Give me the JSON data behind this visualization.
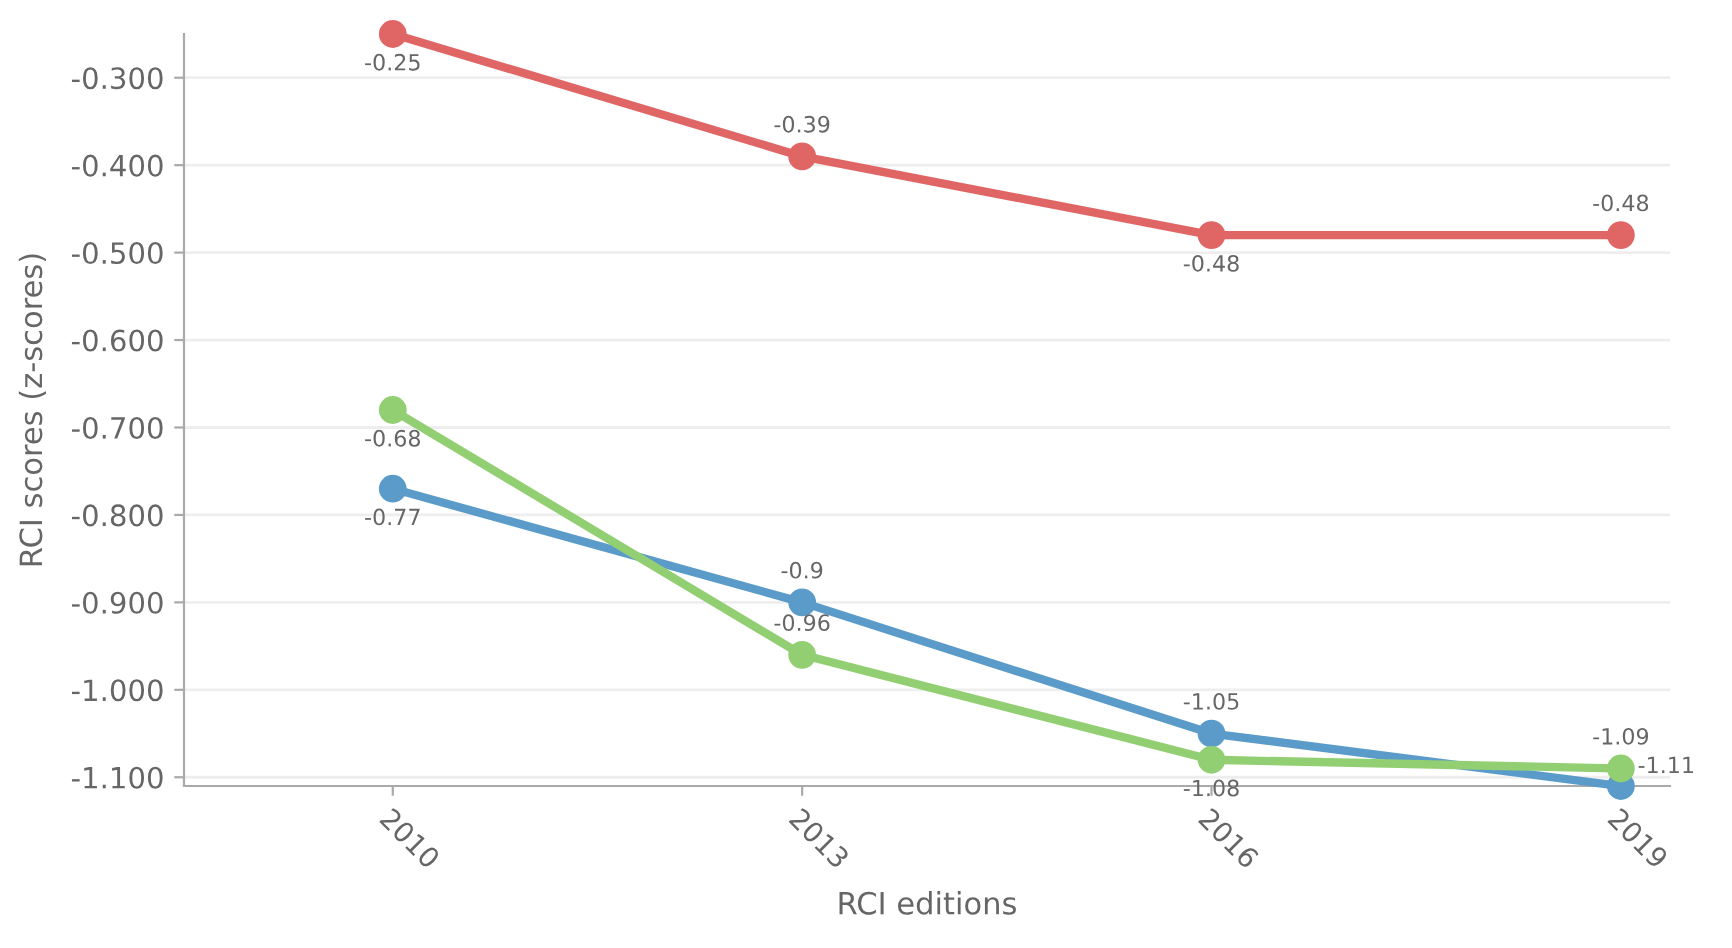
{
  "chart_data": {
    "type": "line",
    "xlabel": "RCI editions",
    "ylabel": "RCI scores (z-scores)",
    "categories": [
      "2010",
      "2013",
      "2016",
      "2019"
    ],
    "series": [
      {
        "color": "#e06666",
        "values": [
          -0.25,
          -0.39,
          -0.48,
          -0.48
        ],
        "value_labels": [
          "-0.25",
          "-0.39",
          "-0.48",
          "-0.48"
        ]
      },
      {
        "color": "#5b9bc9",
        "values": [
          -0.77,
          -0.9,
          -1.05,
          -1.11
        ],
        "value_labels": [
          "-0.77",
          "-0.9",
          "-1.05",
          "-1.11"
        ]
      },
      {
        "color": "#92cf72",
        "values": [
          -0.68,
          -0.96,
          -1.08,
          -1.09
        ],
        "value_labels": [
          "-0.68",
          "-0.96",
          "-1.08",
          "-1.09"
        ]
      }
    ],
    "ylim": [
      -1.11,
      -0.25
    ],
    "yticks": [
      {
        "value": -1.1,
        "label": "-1.100"
      },
      {
        "value": -1.0,
        "label": "-1.000"
      },
      {
        "value": -0.9,
        "label": "-0.900"
      },
      {
        "value": -0.8,
        "label": "-0.800"
      },
      {
        "value": -0.7,
        "label": "-0.700"
      },
      {
        "value": -0.6,
        "label": "-0.600"
      },
      {
        "value": -0.5,
        "label": "-0.500"
      },
      {
        "value": -0.4,
        "label": "-0.400"
      },
      {
        "value": -0.3,
        "label": "-0.300"
      }
    ],
    "grid": "y",
    "marker": "circle",
    "line_style": "solid",
    "legend": false
  }
}
